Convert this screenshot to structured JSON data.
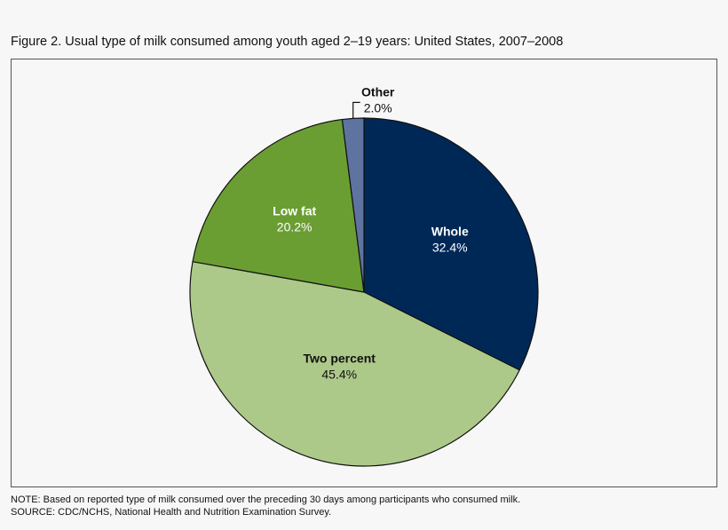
{
  "title": "Figure 2. Usual type of milk consumed among youth aged 2–19 years: United States, 2007–2008",
  "note": "NOTE: Based on reported type of milk consumed over the preceding 30 days among participants who consumed milk.",
  "source": "SOURCE: CDC/NCHS, National Health and Nutrition Examination Survey.",
  "chart_data": {
    "type": "pie",
    "title": "Figure 2. Usual type of milk consumed among youth aged 2–19 years: United States, 2007–2008",
    "start": "12 o'clock, clockwise",
    "slices": [
      {
        "label": "Whole",
        "value": 32.4,
        "value_label": "32.4%",
        "color": "#002857",
        "text_color": "#ffffff"
      },
      {
        "label": "Two percent",
        "value": 45.4,
        "value_label": "45.4%",
        "color": "#adc98a",
        "text_color": "#111111"
      },
      {
        "label": "Low fat",
        "value": 20.2,
        "value_label": "20.2%",
        "color": "#6a9e33",
        "text_color": "#ffffff"
      },
      {
        "label": "Other",
        "value": 2.0,
        "value_label": "2.0%",
        "color": "#5e73a0",
        "text_color": "#111111"
      }
    ]
  }
}
